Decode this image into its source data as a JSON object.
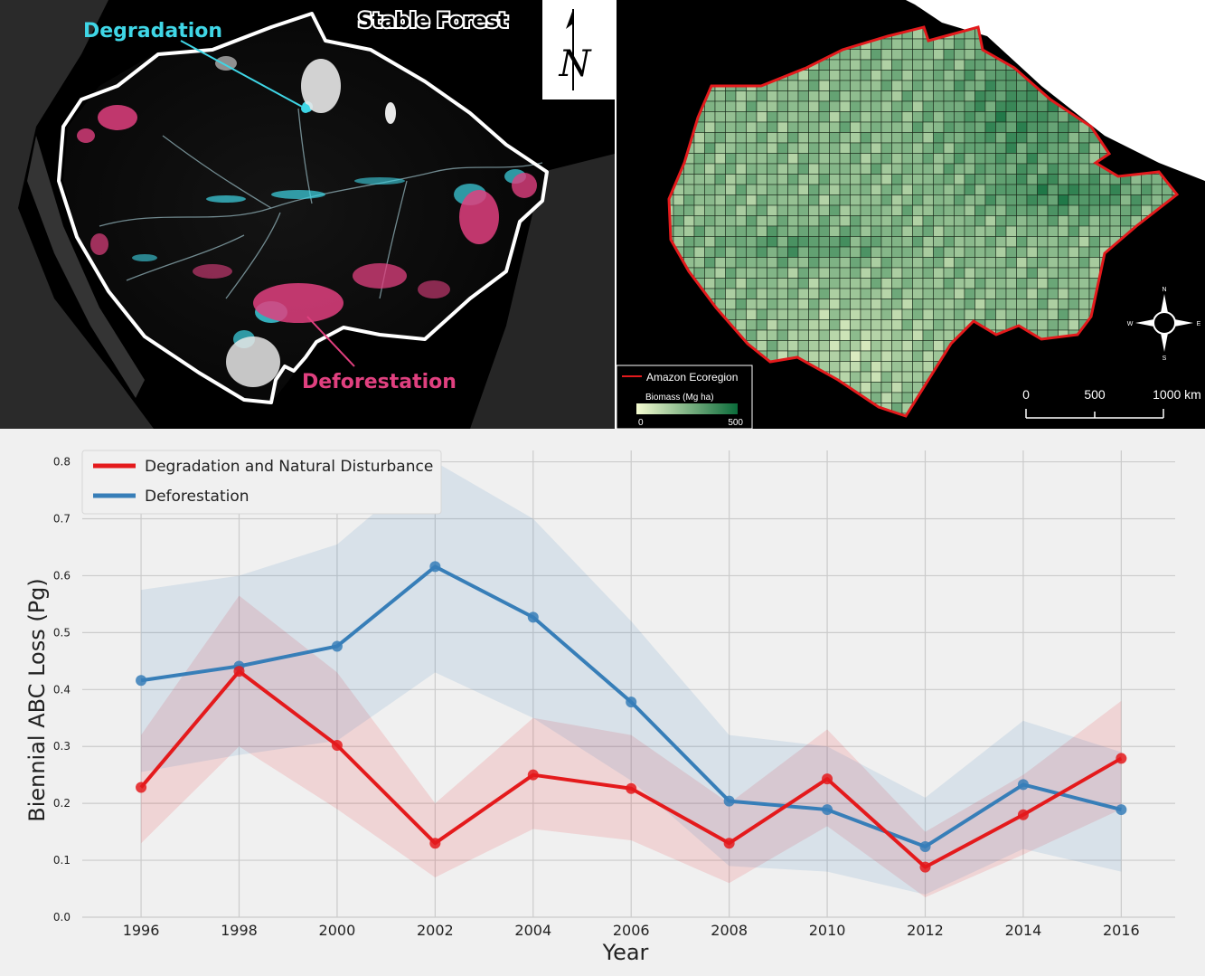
{
  "map_left": {
    "labels": {
      "degradation": "Degradation",
      "stable_forest": "Stable Forest",
      "deforestation": "Deforestation"
    },
    "colors": {
      "degradation": "#3fd6e6",
      "deforestation": "#e0407f",
      "boundary": "#ffffff"
    },
    "north_arrow_letter": "N"
  },
  "map_right": {
    "legend": {
      "boundary_label": "Amazon Ecoregion",
      "biomass_title": "Biomass (Mg ha)",
      "biomass_min": "0",
      "biomass_max": "500"
    },
    "scale_bar": {
      "t0": "0",
      "t1": "500",
      "t2": "1000 km"
    },
    "compass": {
      "n": "N",
      "s": "S",
      "e": "E",
      "w": "W"
    },
    "colors": {
      "boundary": "#e31a1c",
      "low": "#f4fbd0",
      "high": "#0b6b3a"
    }
  },
  "chart_data": {
    "type": "line",
    "xlabel": "Year",
    "ylabel": "Biennial ABC Loss (Pg)",
    "x": [
      1996,
      1998,
      2000,
      2002,
      2004,
      2006,
      2008,
      2010,
      2012,
      2014,
      2016
    ],
    "xlim": [
      1994.8,
      2017.1
    ],
    "ylim": [
      0,
      0.82
    ],
    "yticks": [
      "0.0",
      "0.1",
      "0.2",
      "0.3",
      "0.4",
      "0.5",
      "0.6",
      "0.7",
      "0.8"
    ],
    "grid": true,
    "legend_position": "top-left",
    "series": [
      {
        "name": "Degradation and Natural Disturbance",
        "color": "#e41a1c",
        "values": [
          0.228,
          0.432,
          0.302,
          0.13,
          0.25,
          0.226,
          0.13,
          0.243,
          0.088,
          0.18,
          0.279
        ],
        "upper": [
          0.32,
          0.565,
          0.43,
          0.2,
          0.35,
          0.32,
          0.2,
          0.33,
          0.15,
          0.25,
          0.38
        ],
        "lower": [
          0.13,
          0.3,
          0.19,
          0.07,
          0.155,
          0.135,
          0.06,
          0.16,
          0.035,
          0.11,
          0.19
        ]
      },
      {
        "name": "Deforestation",
        "color": "#377eb8",
        "values": [
          0.416,
          0.441,
          0.476,
          0.616,
          0.527,
          0.378,
          0.204,
          0.189,
          0.124,
          0.233,
          0.189
        ],
        "upper": [
          0.575,
          0.6,
          0.655,
          0.8,
          0.7,
          0.52,
          0.32,
          0.3,
          0.21,
          0.345,
          0.29
        ],
        "lower": [
          0.255,
          0.285,
          0.31,
          0.43,
          0.35,
          0.24,
          0.09,
          0.08,
          0.04,
          0.12,
          0.08
        ]
      }
    ]
  }
}
